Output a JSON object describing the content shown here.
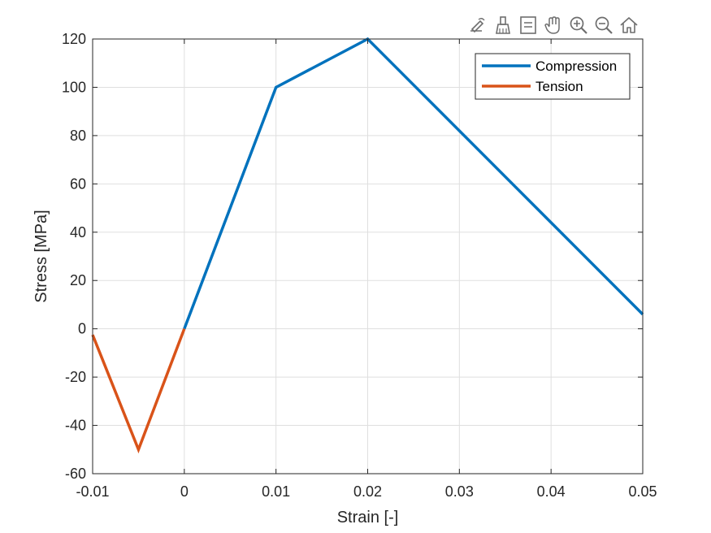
{
  "toolbar": {
    "icons": [
      "edit-export-icon",
      "brush-icon",
      "datatip-icon",
      "pan-hand-icon",
      "zoom-in-icon",
      "zoom-out-icon",
      "home-icon"
    ]
  },
  "chart_data": {
    "type": "line",
    "title": "",
    "xlabel": "Strain [-]",
    "ylabel": "Stress [MPa]",
    "xlim": [
      -0.01,
      0.05
    ],
    "ylim": [
      -60,
      120
    ],
    "xticks": [
      -0.01,
      0,
      0.01,
      0.02,
      0.03,
      0.04,
      0.05
    ],
    "xtick_labels": [
      "-0.01",
      "0",
      "0.01",
      "0.02",
      "0.03",
      "0.04",
      "0.05"
    ],
    "yticks": [
      -60,
      -40,
      -20,
      0,
      20,
      40,
      60,
      80,
      100,
      120
    ],
    "ytick_labels": [
      "-60",
      "-40",
      "-20",
      "0",
      "20",
      "40",
      "60",
      "80",
      "100",
      "120"
    ],
    "grid": true,
    "legend_position": "top-right",
    "series": [
      {
        "name": "Compression",
        "color": "#0072BD",
        "x": [
          0,
          0.01,
          0.02,
          0.05
        ],
        "y": [
          0,
          100,
          120,
          6
        ]
      },
      {
        "name": "Tension",
        "color": "#D95319",
        "x": [
          0,
          -0.005,
          -0.01
        ],
        "y": [
          0,
          -50,
          -2.5
        ]
      }
    ]
  }
}
